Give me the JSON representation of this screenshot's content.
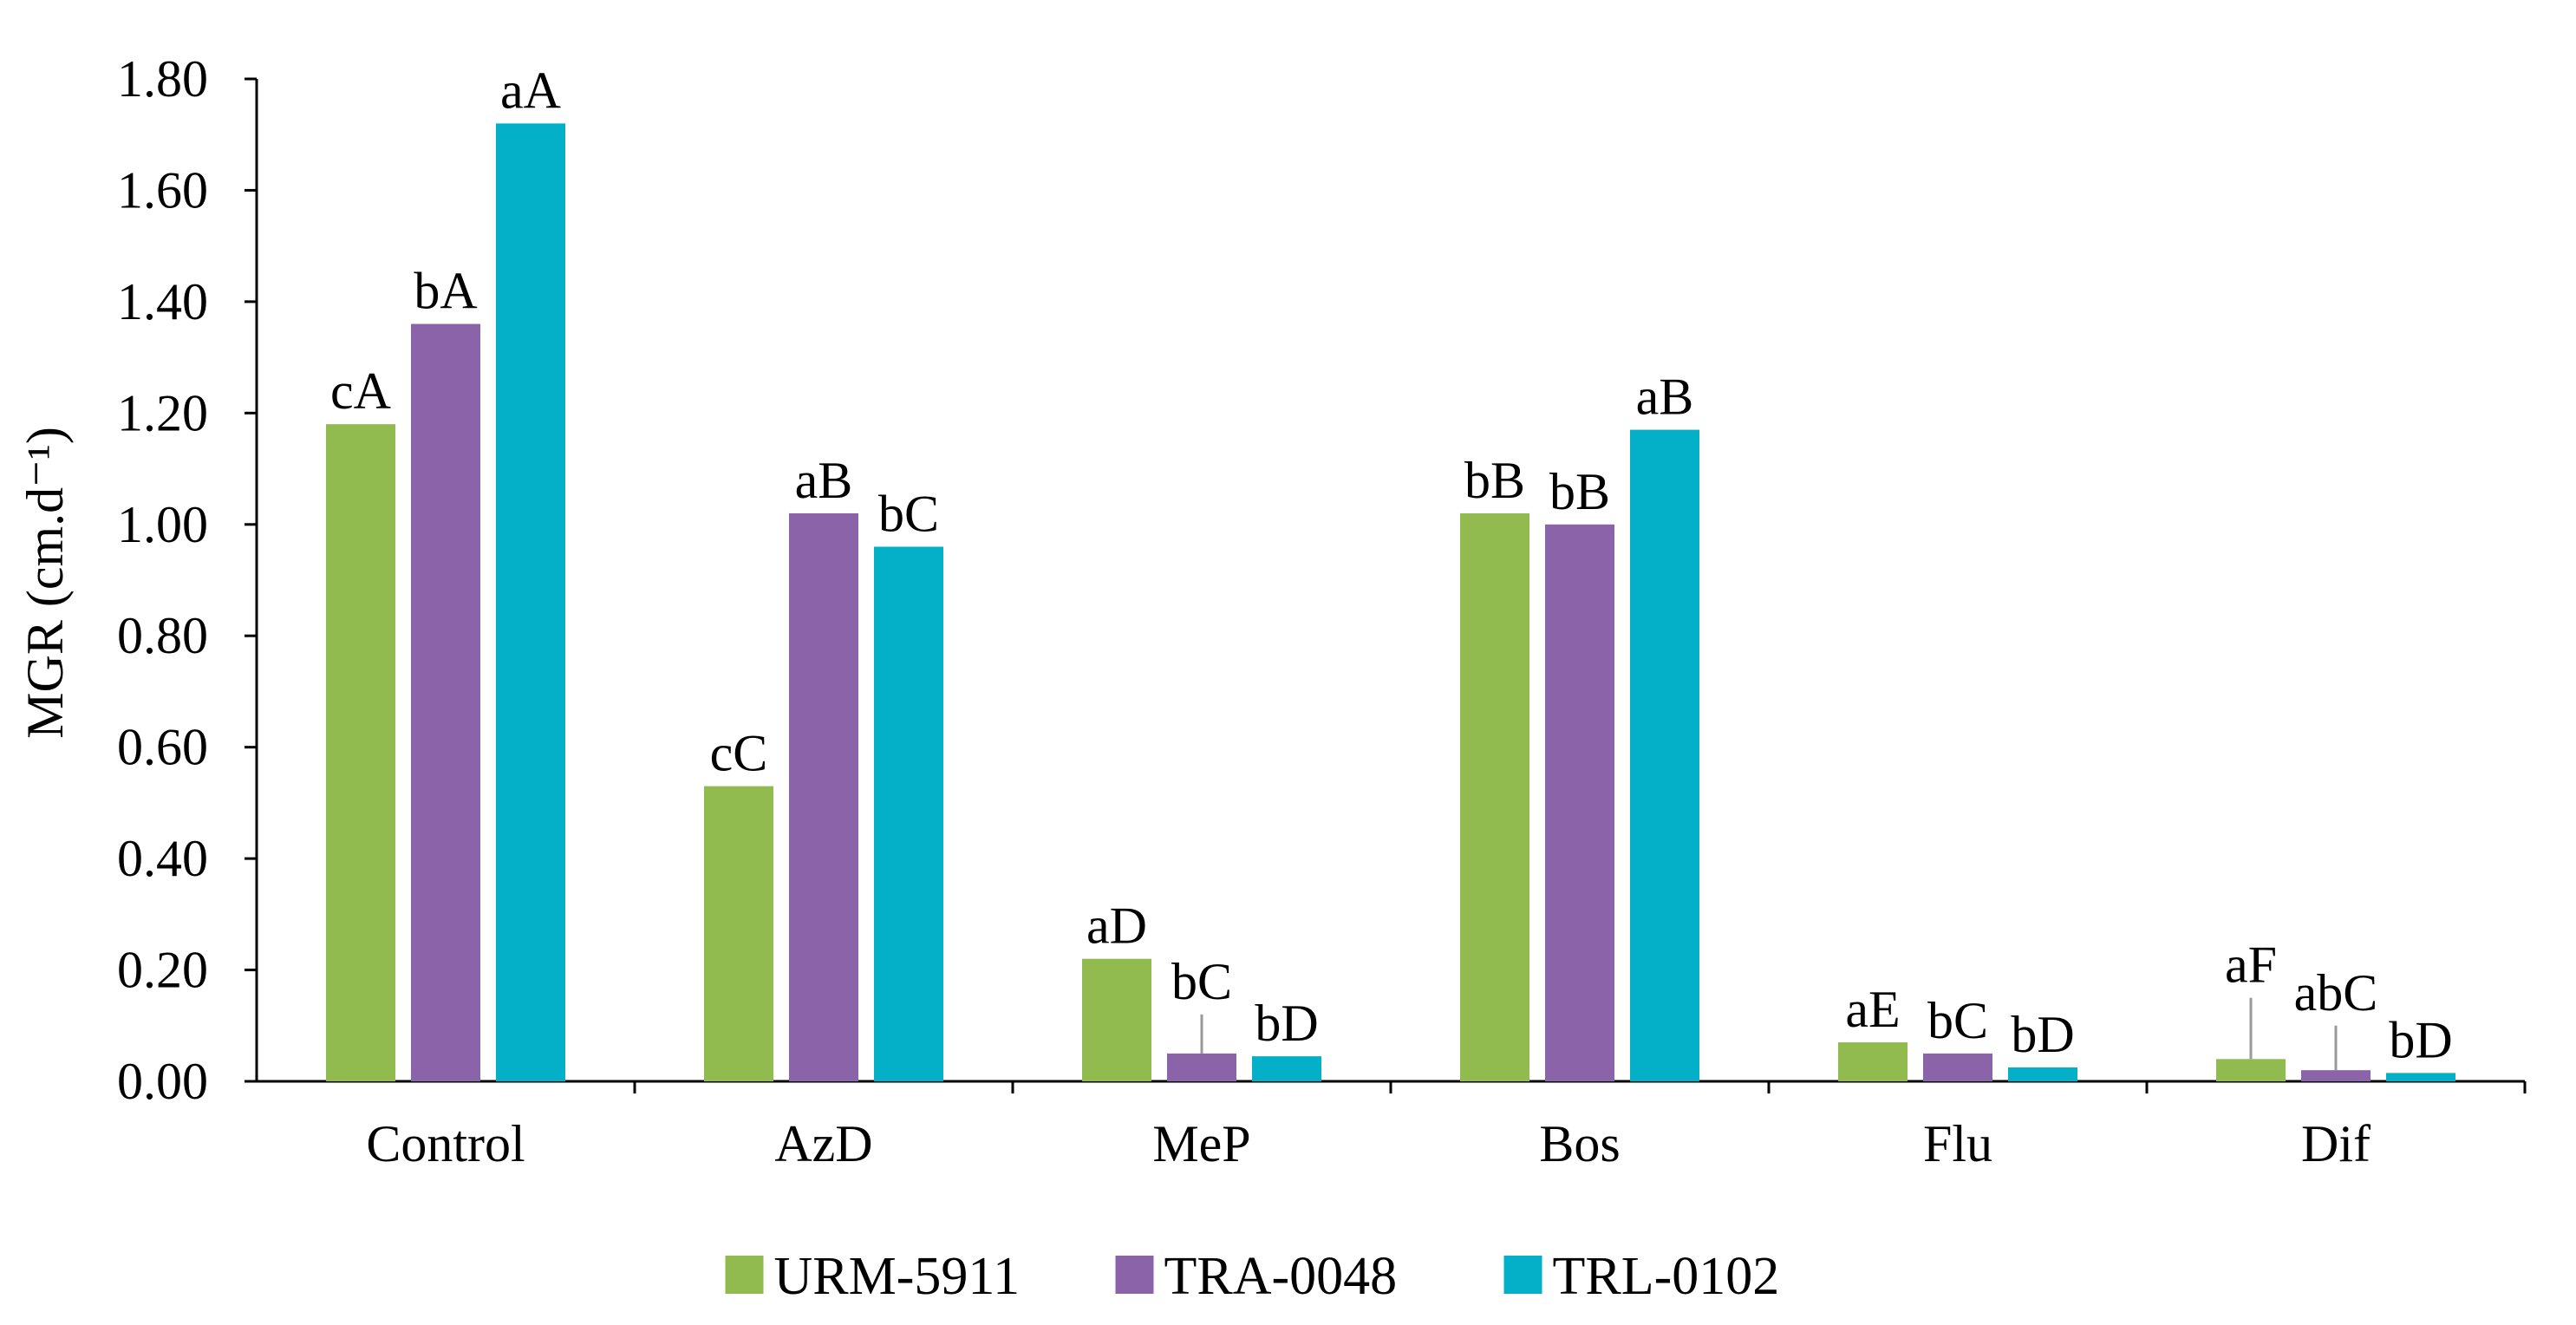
{
  "chart_data": {
    "type": "bar",
    "title": "",
    "xlabel": "",
    "ylabel": "MGR (cm.d⁻¹)",
    "ylim": [
      0,
      1.8
    ],
    "yticks": [
      "0.00",
      "0.20",
      "0.40",
      "0.60",
      "0.80",
      "1.00",
      "1.20",
      "1.40",
      "1.60",
      "1.80"
    ],
    "grid": false,
    "legend_position": "bottom",
    "categories": [
      "Control",
      "AzD",
      "MeP",
      "Bos",
      "Flu",
      "Dif"
    ],
    "series": [
      {
        "name": "URM-5911",
        "color": "#92BB4F",
        "values": [
          1.18,
          0.53,
          0.22,
          1.02,
          0.07,
          0.04
        ],
        "labels": [
          "cA",
          "cC",
          "aD",
          "bB",
          "aE",
          "aF"
        ],
        "errors": [
          0,
          0,
          0,
          0,
          0,
          0.11
        ]
      },
      {
        "name": "TRA-0048",
        "color": "#8B63A8",
        "values": [
          1.36,
          1.02,
          0.05,
          1.0,
          0.05,
          0.02
        ],
        "labels": [
          "bA",
          "aB",
          "bC",
          "bB",
          "bC",
          "abC"
        ],
        "errors": [
          0,
          0,
          0.07,
          0,
          0,
          0.08
        ]
      },
      {
        "name": "TRL-0102",
        "color": "#04B0C8",
        "values": [
          1.72,
          0.96,
          0.045,
          1.17,
          0.025,
          0.015
        ],
        "labels": [
          "aA",
          "bC",
          "bD",
          "aB",
          "bD",
          "bD"
        ],
        "errors": [
          0,
          0,
          0,
          0,
          0,
          0
        ]
      }
    ]
  }
}
